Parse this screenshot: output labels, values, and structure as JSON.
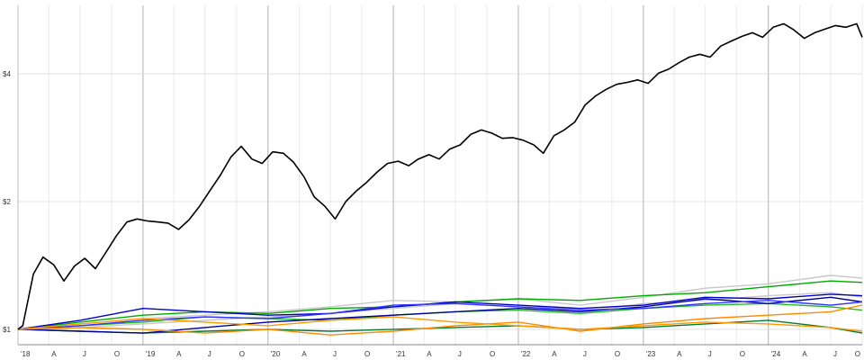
{
  "chart_data": {
    "type": "line",
    "title": "",
    "xlabel": "",
    "ylabel": "",
    "y_scale": "log",
    "ylim": [
      0.92,
      5.8
    ],
    "xlim": [
      "2018-01-01",
      "2024-10-01"
    ],
    "grid": "on",
    "y_ticks": [
      {
        "value": 1,
        "label": "$1"
      },
      {
        "value": 2,
        "label": "$2"
      },
      {
        "value": 4,
        "label": "$4"
      }
    ],
    "x_ticks": [
      {
        "date": "2018-01-01",
        "label": "'18",
        "year": true
      },
      {
        "date": "2018-04-01",
        "label": "A"
      },
      {
        "date": "2018-07-01",
        "label": "J"
      },
      {
        "date": "2018-10-01",
        "label": "O"
      },
      {
        "date": "2019-01-01",
        "label": "'19",
        "year": true
      },
      {
        "date": "2019-04-01",
        "label": "A"
      },
      {
        "date": "2019-07-01",
        "label": "J"
      },
      {
        "date": "2019-10-01",
        "label": "O"
      },
      {
        "date": "2020-01-01",
        "label": "'20",
        "year": true
      },
      {
        "date": "2020-04-01",
        "label": "A"
      },
      {
        "date": "2020-07-01",
        "label": "J"
      },
      {
        "date": "2020-10-01",
        "label": "O"
      },
      {
        "date": "2021-01-01",
        "label": "'21",
        "year": true
      },
      {
        "date": "2021-04-01",
        "label": "A"
      },
      {
        "date": "2021-07-01",
        "label": "J"
      },
      {
        "date": "2021-10-01",
        "label": "O"
      },
      {
        "date": "2022-01-01",
        "label": "'22",
        "year": true
      },
      {
        "date": "2022-04-01",
        "label": "A"
      },
      {
        "date": "2022-07-01",
        "label": "J"
      },
      {
        "date": "2022-10-01",
        "label": "O"
      },
      {
        "date": "2023-01-01",
        "label": "'23",
        "year": true
      },
      {
        "date": "2023-04-01",
        "label": "A"
      },
      {
        "date": "2023-07-01",
        "label": "J"
      },
      {
        "date": "2023-10-01",
        "label": "O"
      },
      {
        "date": "2024-01-01",
        "label": "'24",
        "year": true
      },
      {
        "date": "2024-04-01",
        "label": "A"
      },
      {
        "date": "2024-07-01",
        "label": "J"
      },
      {
        "date": "2024-10-01",
        "label": "O"
      }
    ],
    "series": [
      {
        "color": "#000000",
        "width": 1.6,
        "x": [
          "2018-01-01",
          "2018-01-15",
          "2018-02-15",
          "2018-03-15",
          "2018-04-15",
          "2018-05-15",
          "2018-06-15",
          "2018-07-15",
          "2018-08-15",
          "2018-09-15",
          "2018-10-15",
          "2018-11-15",
          "2018-12-15",
          "2019-01-15",
          "2019-02-15",
          "2019-03-15",
          "2019-04-15",
          "2019-05-15",
          "2019-06-15",
          "2019-07-15",
          "2019-08-15",
          "2019-09-15",
          "2019-10-15",
          "2019-11-15",
          "2019-12-15",
          "2020-01-15",
          "2020-02-15",
          "2020-03-15",
          "2020-04-15",
          "2020-05-15",
          "2020-06-15",
          "2020-07-15",
          "2020-08-15",
          "2020-09-15",
          "2020-10-15",
          "2020-11-15",
          "2020-12-15",
          "2021-01-15",
          "2021-02-15",
          "2021-03-15",
          "2021-04-15",
          "2021-05-15",
          "2021-06-15",
          "2021-07-15",
          "2021-08-15",
          "2021-09-15",
          "2021-10-15",
          "2021-11-15",
          "2021-12-15",
          "2022-01-15",
          "2022-02-15",
          "2022-03-15",
          "2022-04-15",
          "2022-05-15",
          "2022-06-15",
          "2022-07-15",
          "2022-08-15",
          "2022-09-15",
          "2022-10-15",
          "2022-11-15",
          "2022-12-15",
          "2023-01-15",
          "2023-02-15",
          "2023-03-15",
          "2023-04-15",
          "2023-05-15",
          "2023-06-15",
          "2023-07-15",
          "2023-08-15",
          "2023-09-15",
          "2023-10-15",
          "2023-11-15",
          "2023-12-15",
          "2024-01-15",
          "2024-02-15",
          "2024-03-15",
          "2024-04-15",
          "2024-05-15",
          "2024-06-15",
          "2024-07-15",
          "2024-08-15",
          "2024-09-15",
          "2024-10-01"
        ],
        "y": [
          1.0,
          1.02,
          1.35,
          1.48,
          1.42,
          1.3,
          1.41,
          1.47,
          1.39,
          1.52,
          1.66,
          1.79,
          1.82,
          1.8,
          1.79,
          1.78,
          1.72,
          1.81,
          1.95,
          2.12,
          2.31,
          2.55,
          2.7,
          2.52,
          2.46,
          2.62,
          2.6,
          2.48,
          2.29,
          2.05,
          1.95,
          1.82,
          2.0,
          2.12,
          2.22,
          2.35,
          2.46,
          2.49,
          2.43,
          2.52,
          2.58,
          2.52,
          2.66,
          2.72,
          2.88,
          2.95,
          2.9,
          2.82,
          2.83,
          2.79,
          2.72,
          2.6,
          2.86,
          2.95,
          3.08,
          3.38,
          3.55,
          3.68,
          3.78,
          3.82,
          3.87,
          3.8,
          4.02,
          4.1,
          4.25,
          4.38,
          4.45,
          4.38,
          4.65,
          4.78,
          4.9,
          5.0,
          4.88,
          5.15,
          5.25,
          5.08,
          4.85,
          5.0,
          5.1,
          5.2,
          5.15,
          5.25,
          4.88
        ]
      },
      {
        "color": "#c8c8c8",
        "width": 1.4,
        "x": [
          "2018-01-01",
          "2018-07-01",
          "2019-01-01",
          "2019-07-01",
          "2020-01-01",
          "2020-07-01",
          "2021-01-01",
          "2021-07-01",
          "2022-01-01",
          "2022-07-01",
          "2023-01-01",
          "2023-07-01",
          "2024-01-01",
          "2024-07-01",
          "2024-10-01"
        ],
        "y": [
          1.0,
          1.03,
          1.06,
          1.08,
          1.1,
          1.13,
          1.17,
          1.16,
          1.18,
          1.14,
          1.19,
          1.25,
          1.28,
          1.34,
          1.32
        ]
      },
      {
        "color": "#c8c8c8",
        "width": 1.4,
        "x": [
          "2018-01-01",
          "2018-07-01",
          "2019-01-01",
          "2019-07-01",
          "2020-01-01",
          "2020-07-01",
          "2021-01-01",
          "2021-07-01",
          "2022-01-01",
          "2022-07-01",
          "2023-01-01",
          "2023-07-01",
          "2024-01-01",
          "2024-07-01",
          "2024-10-01"
        ],
        "y": [
          1.0,
          1.01,
          1.03,
          1.05,
          1.07,
          1.09,
          1.12,
          1.15,
          1.13,
          1.1,
          1.15,
          1.17,
          1.2,
          1.22,
          1.19
        ]
      },
      {
        "color": "#00aa00",
        "width": 1.4,
        "x": [
          "2018-01-01",
          "2018-07-01",
          "2019-01-01",
          "2019-07-01",
          "2020-01-01",
          "2020-07-01",
          "2021-01-01",
          "2021-07-01",
          "2022-01-01",
          "2022-07-01",
          "2023-01-01",
          "2023-07-01",
          "2024-01-01",
          "2024-07-01",
          "2024-10-01"
        ],
        "y": [
          1.0,
          1.04,
          1.08,
          1.1,
          1.09,
          1.12,
          1.13,
          1.16,
          1.18,
          1.17,
          1.2,
          1.22,
          1.26,
          1.3,
          1.29
        ]
      },
      {
        "color": "#22bb22",
        "width": 1.4,
        "x": [
          "2018-01-01",
          "2018-07-01",
          "2019-01-01",
          "2019-07-01",
          "2020-01-01",
          "2020-07-01",
          "2021-01-01",
          "2021-07-01",
          "2022-01-01",
          "2022-07-01",
          "2023-01-01",
          "2023-07-01",
          "2024-01-01",
          "2024-07-01",
          "2024-10-01"
        ],
        "y": [
          1.0,
          1.02,
          1.04,
          1.07,
          1.06,
          1.05,
          1.08,
          1.1,
          1.11,
          1.09,
          1.12,
          1.14,
          1.15,
          1.13,
          1.11
        ]
      },
      {
        "color": "#007a33",
        "width": 1.4,
        "x": [
          "2018-01-01",
          "2018-07-01",
          "2019-01-01",
          "2019-07-01",
          "2020-01-01",
          "2020-07-01",
          "2021-01-01",
          "2021-07-01",
          "2022-01-01",
          "2022-07-01",
          "2023-01-01",
          "2023-07-01",
          "2024-01-01",
          "2024-07-01",
          "2024-10-01"
        ],
        "y": [
          1.0,
          0.99,
          0.98,
          0.99,
          1.0,
          0.99,
          1.0,
          1.01,
          1.02,
          1.0,
          1.01,
          1.03,
          1.05,
          1.01,
          0.98
        ]
      },
      {
        "color": "#0000cc",
        "width": 1.4,
        "x": [
          "2018-01-01",
          "2018-07-01",
          "2019-01-01",
          "2019-07-01",
          "2020-01-01",
          "2020-07-01",
          "2021-01-01",
          "2021-07-01",
          "2022-01-01",
          "2022-07-01",
          "2023-01-01",
          "2023-07-01",
          "2024-01-01",
          "2024-07-01",
          "2024-10-01"
        ],
        "y": [
          1.0,
          1.05,
          1.12,
          1.1,
          1.08,
          1.09,
          1.13,
          1.16,
          1.14,
          1.12,
          1.14,
          1.19,
          1.18,
          1.21,
          1.2
        ]
      },
      {
        "color": "#000099",
        "width": 1.4,
        "x": [
          "2018-01-01",
          "2018-07-01",
          "2019-01-01",
          "2019-07-01",
          "2020-01-01",
          "2020-07-01",
          "2021-01-01",
          "2021-07-01",
          "2022-01-01",
          "2022-07-01",
          "2023-01-01",
          "2023-07-01",
          "2024-01-01",
          "2024-07-01",
          "2024-10-01"
        ],
        "y": [
          1.0,
          0.99,
          0.98,
          1.01,
          1.04,
          1.06,
          1.08,
          1.1,
          1.12,
          1.1,
          1.13,
          1.18,
          1.15,
          1.19,
          1.16
        ]
      },
      {
        "color": "#3333ff",
        "width": 1.4,
        "x": [
          "2018-01-01",
          "2018-07-01",
          "2019-01-01",
          "2019-07-01",
          "2020-01-01",
          "2020-07-01",
          "2021-01-01",
          "2021-07-01",
          "2022-01-01",
          "2022-07-01",
          "2023-01-01",
          "2023-07-01",
          "2024-01-01",
          "2024-07-01",
          "2024-10-01"
        ],
        "y": [
          1.0,
          1.02,
          1.05,
          1.07,
          1.06,
          1.09,
          1.14,
          1.15,
          1.13,
          1.11,
          1.12,
          1.15,
          1.17,
          1.14,
          1.16
        ]
      },
      {
        "color": "#ff8800",
        "width": 1.4,
        "x": [
          "2018-01-01",
          "2018-07-01",
          "2019-01-01",
          "2019-07-01",
          "2020-01-01",
          "2020-07-01",
          "2021-01-01",
          "2021-07-01",
          "2022-01-01",
          "2022-07-01",
          "2023-01-01",
          "2023-07-01",
          "2024-01-01",
          "2024-07-01",
          "2024-10-01"
        ],
        "y": [
          1.0,
          1.01,
          1.0,
          0.98,
          1.0,
          0.97,
          0.99,
          1.02,
          1.04,
          0.99,
          1.03,
          1.06,
          1.08,
          1.1,
          1.14
        ]
      },
      {
        "color": "#ff9900",
        "width": 1.4,
        "x": [
          "2018-01-01",
          "2018-07-01",
          "2019-01-01",
          "2019-07-01",
          "2020-01-01",
          "2020-07-01",
          "2021-01-01",
          "2021-07-01",
          "2022-01-01",
          "2022-07-01",
          "2023-01-01",
          "2023-07-01",
          "2024-01-01",
          "2024-07-01",
          "2024-10-01"
        ],
        "y": [
          1.0,
          1.03,
          1.06,
          1.04,
          1.02,
          1.05,
          1.07,
          1.04,
          1.02,
          1.0,
          1.02,
          1.04,
          1.03,
          1.01,
          0.99
        ]
      }
    ]
  }
}
